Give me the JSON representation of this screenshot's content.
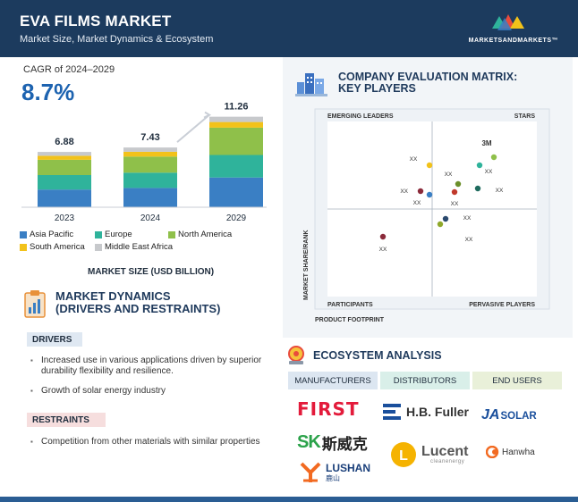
{
  "header": {
    "title": "EVA FILMS MARKET",
    "subtitle": "Market Size, Market Dynamics & Ecosystem",
    "logo_text": "MARKETSANDMARKETS™"
  },
  "cagr": {
    "label": "CAGR of 2024–2029",
    "value": "8.7%"
  },
  "chart_data": {
    "type": "bar",
    "stacked": true,
    "categories": [
      "2023",
      "2024",
      "2029"
    ],
    "totals": [
      "6.88",
      "7.43",
      "11.26"
    ],
    "series": [
      {
        "name": "Asia Pacific",
        "color": "#3a7fc4",
        "values": [
          2.2,
          2.4,
          3.7
        ]
      },
      {
        "name": "Europe",
        "color": "#2fb39b",
        "values": [
          1.8,
          1.9,
          2.8
        ]
      },
      {
        "name": "North America",
        "color": "#8fc04a",
        "values": [
          1.9,
          2.0,
          3.4
        ]
      },
      {
        "name": "South America",
        "color": "#f2c21a",
        "values": [
          0.5,
          0.6,
          0.7
        ]
      },
      {
        "name": "Middle East Africa",
        "color": "#c7c9cc",
        "values": [
          0.48,
          0.53,
          0.66
        ]
      }
    ],
    "xlabel": "MARKET SIZE (USD BILLION)",
    "ylim": [
      0,
      12
    ],
    "legend_position": "bottom"
  },
  "market_dynamics": {
    "title_line1": "MARKET DYNAMICS",
    "title_line2": "(DRIVERS AND RESTRAINTS)",
    "drivers_label": "DRIVERS",
    "drivers": [
      "Increased use in various applications driven by superior durability flexibility and resilience.",
      "Growth of solar energy industry"
    ],
    "restraints_label": "RESTRAINTS",
    "restraints": [
      "Competition from other materials with similar properties"
    ]
  },
  "matrix": {
    "title_line1": "COMPANY EVALUATION MATRIX:",
    "title_line2": "KEY PLAYERS",
    "quadrants": {
      "top_left": "EMERGING LEADERS",
      "top_right": "STARS",
      "bottom_left": "PARTICIPANTS",
      "bottom_right": "PERVASIVE PLAYERS"
    },
    "y_axis_label": "MARKET SHARE/RANK",
    "x_axis_label": "PRODUCT FOOTPRINT",
    "points": [
      {
        "label": "3M",
        "color": "#8fc04a"
      },
      {
        "label": "XX",
        "color": "#2fb39b"
      },
      {
        "label": "XX",
        "color": "#f2c21a"
      },
      {
        "label": "XX",
        "color": "#6b8f2a"
      },
      {
        "label": "XX",
        "color": "#1f6b5e"
      },
      {
        "label": "XX",
        "color": "#3a7fc4"
      },
      {
        "label": "XX",
        "color": "#8b2a3a"
      },
      {
        "label": "XX",
        "color": "#c0392b"
      },
      {
        "label": "XX",
        "color": "#2b4a6e"
      },
      {
        "label": "XX",
        "color": "#8fa82a"
      },
      {
        "label": "XX",
        "color": "#8b2a3a"
      }
    ]
  },
  "ecosystem": {
    "title": "ECOSYSTEM ANALYSIS",
    "headers": [
      "MANUFACTURERS",
      "DISTRIBUTORS",
      "END USERS"
    ],
    "header_colors": [
      "#dce6f1",
      "#d9efe9",
      "#e9f0d9"
    ],
    "brands": {
      "first": "FIRST",
      "hbfuller": "H.B. Fuller",
      "jasolar_ja": "JA",
      "jasolar_solar": "SOLAR",
      "skc_sk": "SK",
      "skc_cn": "斯威克",
      "lucent": "Lucent",
      "lucent_sub": "cleanenergy",
      "hanwha": "Hanwha",
      "lushan": "LUSHAN",
      "lushan_cn": "鹿山"
    }
  }
}
